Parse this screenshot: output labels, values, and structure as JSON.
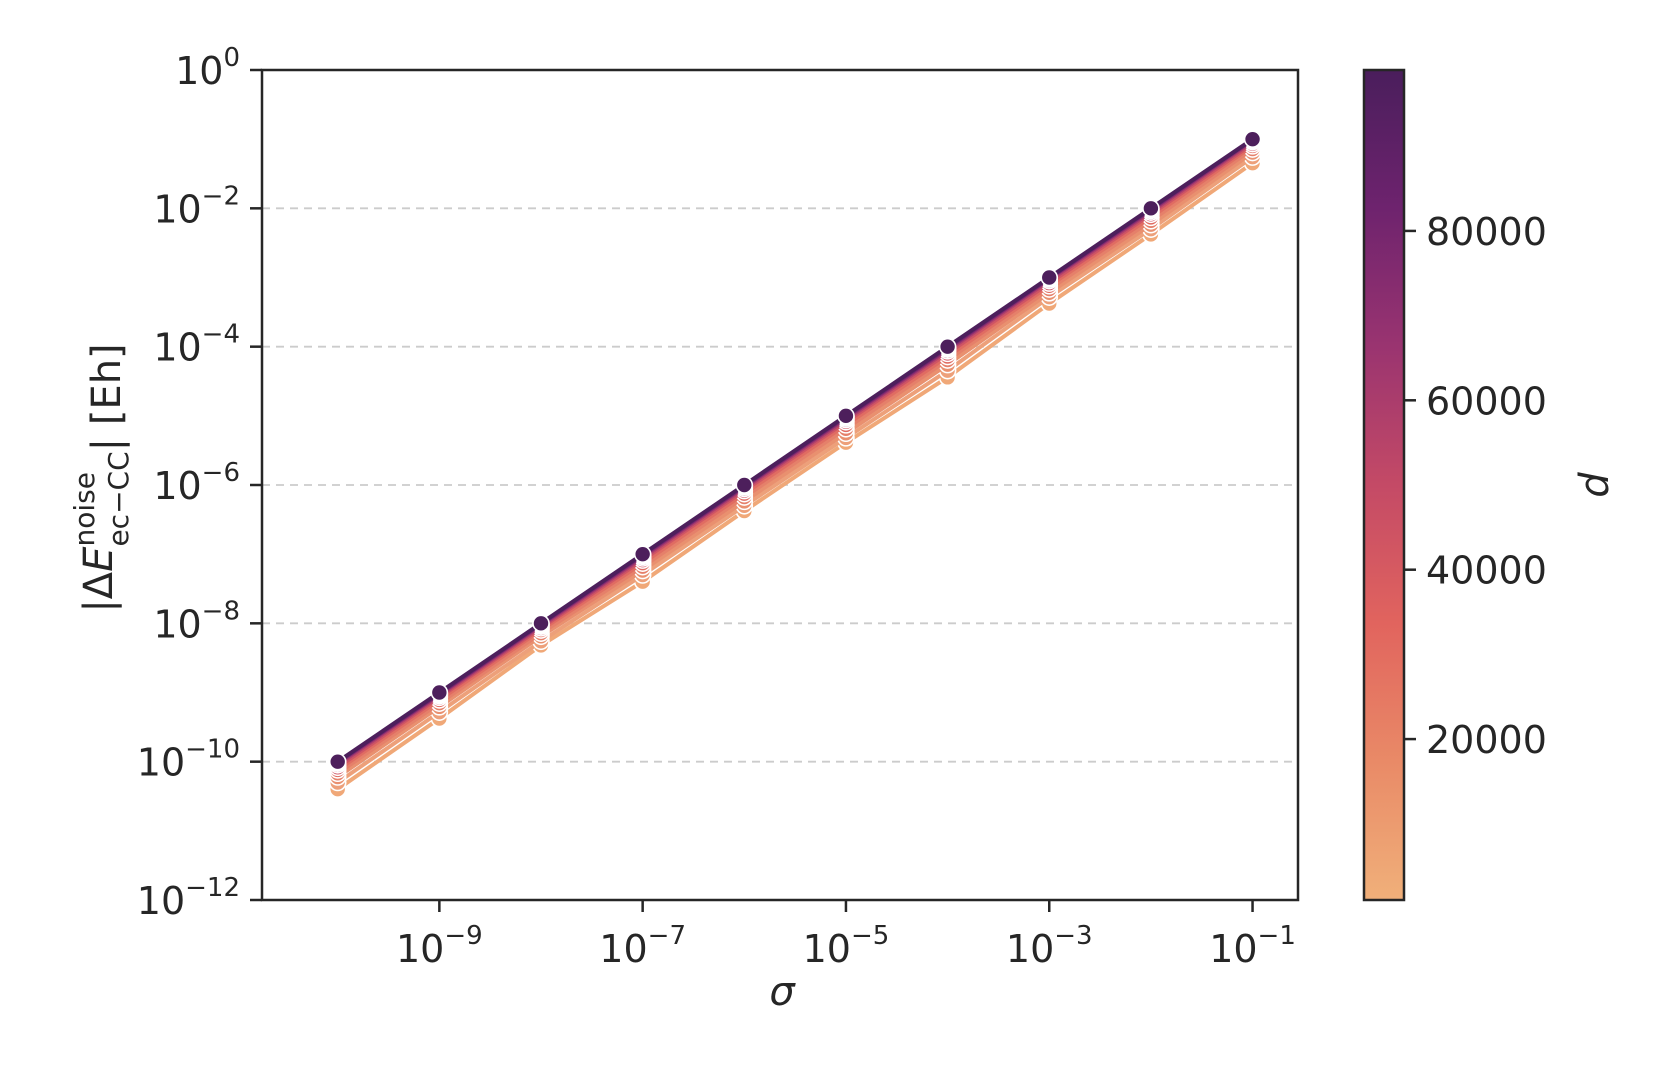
{
  "chart_data": {
    "type": "line",
    "xscale": "log",
    "yscale": "log",
    "xlabel": "σ",
    "ylabel": {
      "prefix": "|Δ",
      "symbol": "E",
      "superscript": "noise",
      "subscript": "ec−CC",
      "suffix": "| [Eh]"
    },
    "xlim": [
      1.8e-11,
      0.28
    ],
    "ylim": [
      1e-12,
      1
    ],
    "x_ticks": [
      {
        "base": "10",
        "exp": "−9",
        "value": 1e-09
      },
      {
        "base": "10",
        "exp": "−7",
        "value": 1e-07
      },
      {
        "base": "10",
        "exp": "−5",
        "value": 1e-05
      },
      {
        "base": "10",
        "exp": "−3",
        "value": 0.001
      },
      {
        "base": "10",
        "exp": "−1",
        "value": 0.1
      }
    ],
    "y_ticks": [
      {
        "base": "10",
        "exp": "0",
        "value": 1
      },
      {
        "base": "10",
        "exp": "−2",
        "value": 0.01
      },
      {
        "base": "10",
        "exp": "−4",
        "value": 0.0001
      },
      {
        "base": "10",
        "exp": "−6",
        "value": 1e-06
      },
      {
        "base": "10",
        "exp": "−8",
        "value": 1e-08
      },
      {
        "base": "10",
        "exp": "−10",
        "value": 1e-10
      },
      {
        "base": "10",
        "exp": "−12",
        "value": 1e-12
      }
    ],
    "grid": "horizontal-dashed",
    "x": [
      1e-10,
      1e-09,
      1e-08,
      1e-07,
      1e-06,
      1e-05,
      0.0001,
      0.001,
      0.01,
      0.1
    ],
    "series": [
      {
        "d": 1000,
        "color": "#f0a878",
        "ratio": [
          0.4,
          0.42,
          0.48,
          0.4,
          0.42,
          0.41,
          0.36,
          0.42,
          0.42,
          0.45
        ]
      },
      {
        "d": 10000,
        "color": "#eda07a",
        "ratio": [
          0.5,
          0.52,
          0.55,
          0.5,
          0.5,
          0.48,
          0.45,
          0.52,
          0.5,
          0.55
        ]
      },
      {
        "d": 20000,
        "color": "#e9906f",
        "ratio": [
          0.6,
          0.62,
          0.65,
          0.58,
          0.58,
          0.56,
          0.55,
          0.6,
          0.58,
          0.64
        ]
      },
      {
        "d": 30000,
        "color": "#e5806a",
        "ratio": [
          0.68,
          0.7,
          0.72,
          0.66,
          0.67,
          0.65,
          0.64,
          0.68,
          0.66,
          0.72
        ]
      },
      {
        "d": 40000,
        "color": "#e06c62",
        "ratio": [
          0.76,
          0.78,
          0.8,
          0.74,
          0.75,
          0.74,
          0.72,
          0.76,
          0.74,
          0.8
        ]
      },
      {
        "d": 50000,
        "color": "#cf5464",
        "ratio": [
          0.83,
          0.85,
          0.86,
          0.82,
          0.83,
          0.82,
          0.8,
          0.83,
          0.82,
          0.86
        ]
      },
      {
        "d": 60000,
        "color": "#b3426b",
        "ratio": [
          0.9,
          0.9,
          0.91,
          0.88,
          0.89,
          0.88,
          0.87,
          0.9,
          0.88,
          0.92
        ]
      },
      {
        "d": 70000,
        "color": "#91306f",
        "ratio": [
          0.95,
          0.94,
          0.95,
          0.93,
          0.94,
          0.93,
          0.92,
          0.95,
          0.93,
          0.96
        ]
      },
      {
        "d": 80000,
        "color": "#70246e",
        "ratio": [
          0.98,
          0.97,
          0.98,
          0.97,
          0.97,
          0.97,
          0.96,
          0.98,
          0.97,
          0.99
        ]
      },
      {
        "d": 95000,
        "color": "#4d1f5c",
        "ratio": [
          1.0,
          1.0,
          1.0,
          1.0,
          1.0,
          1.0,
          1.0,
          1.0,
          1.0,
          1.0
        ]
      }
    ],
    "colorbar": {
      "label": "d",
      "range": [
        1000,
        99000
      ],
      "ticks": [
        "20000",
        "40000",
        "60000",
        "80000"
      ],
      "tick_values": [
        20000,
        40000,
        60000,
        80000
      ],
      "stops": [
        "#f0b07a",
        "#e98a67",
        "#e1645e",
        "#c44a66",
        "#9a3470",
        "#6e236e",
        "#4a1e5c"
      ]
    }
  }
}
